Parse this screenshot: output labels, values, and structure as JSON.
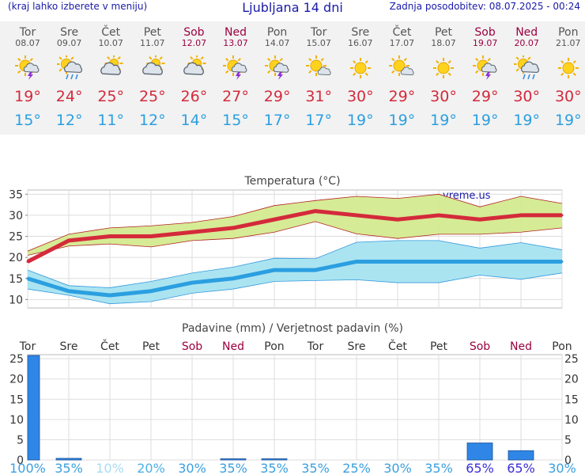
{
  "header": {
    "menu_hint": "(kraj lahko izberete v meniju)",
    "title": "Ljubljana 14 dni",
    "last_update": "Zadnja posodobitev: 08.07.2025 - 00:24"
  },
  "colors": {
    "header_text": "#1a1aa8",
    "weekday": "#555555",
    "weekend": "#9b0040",
    "max_temp": "#d42a3b",
    "min_temp": "#2b9fe0",
    "max_band": "#d4ea8f",
    "min_band": "#a6e3f0",
    "precip_bar": "#2f86e6"
  },
  "days": [
    {
      "name": "Tor",
      "date": "08.07",
      "weekend": false,
      "icon": "thunderstorm-sun-icon",
      "max": "19",
      "min": "15"
    },
    {
      "name": "Sre",
      "date": "09.07",
      "weekend": false,
      "icon": "rain-sun-cloud-icon",
      "max": "24",
      "min": "12"
    },
    {
      "name": "Čet",
      "date": "10.07",
      "weekend": false,
      "icon": "partly-cloudy-icon",
      "max": "25",
      "min": "11"
    },
    {
      "name": "Pet",
      "date": "11.07",
      "weekend": false,
      "icon": "partly-cloudy-icon",
      "max": "25",
      "min": "12"
    },
    {
      "name": "Sob",
      "date": "12.07",
      "weekend": true,
      "icon": "partly-cloudy-icon",
      "max": "26",
      "min": "14"
    },
    {
      "name": "Ned",
      "date": "13.07",
      "weekend": true,
      "icon": "thunderstorm-sun-icon",
      "max": "27",
      "min": "15"
    },
    {
      "name": "Pon",
      "date": "14.07",
      "weekend": false,
      "icon": "thunderstorm-sun-icon",
      "max": "29",
      "min": "17"
    },
    {
      "name": "Tor",
      "date": "15.07",
      "weekend": false,
      "icon": "sun-small-cloud-icon",
      "max": "31",
      "min": "17"
    },
    {
      "name": "Sre",
      "date": "16.07",
      "weekend": false,
      "icon": "sunny-icon",
      "max": "30",
      "min": "19"
    },
    {
      "name": "Čet",
      "date": "17.07",
      "weekend": false,
      "icon": "sun-small-cloud-icon",
      "max": "29",
      "min": "19"
    },
    {
      "name": "Pet",
      "date": "18.07",
      "weekend": false,
      "icon": "sunny-icon",
      "max": "30",
      "min": "19"
    },
    {
      "name": "Sob",
      "date": "19.07",
      "weekend": true,
      "icon": "thunderstorm-sun-icon",
      "max": "29",
      "min": "19"
    },
    {
      "name": "Ned",
      "date": "20.07",
      "weekend": true,
      "icon": "rain-sun-cloud-icon",
      "max": "30",
      "min": "19"
    },
    {
      "name": "Pon",
      "date": "21.07",
      "weekend": false,
      "icon": "sunny-icon",
      "max": "30",
      "min": "19"
    }
  ],
  "chart_data": [
    {
      "type": "line",
      "title": "Temperatura (°C)",
      "watermark": "vreme.us",
      "categories": [
        "Tor",
        "Sre",
        "Čet",
        "Pet",
        "Sob",
        "Ned",
        "Pon",
        "Tor",
        "Sre",
        "Čet",
        "Pet",
        "Sob",
        "Ned",
        "Pon"
      ],
      "ylim": [
        8,
        36
      ],
      "yticks": [
        10,
        15,
        20,
        25,
        30,
        35
      ],
      "grid": true,
      "series": [
        {
          "values": [
            19,
            24,
            25,
            25,
            26,
            27,
            29,
            31,
            30,
            29,
            30,
            29,
            30,
            30
          ],
          "band_low": [
            20.5,
            22.7,
            23.2,
            22.5,
            24,
            24.5,
            26,
            28.5,
            25.6,
            24.5,
            25.5,
            25.5,
            26,
            27
          ],
          "band_high": [
            21.5,
            25.5,
            27,
            27.5,
            28.3,
            29.7,
            32.3,
            33.5,
            34.5,
            34,
            35,
            32,
            34.5,
            32.8
          ]
        },
        {
          "values": [
            15,
            12,
            11,
            12,
            14,
            15,
            17,
            17,
            19,
            19,
            19,
            19,
            19,
            19
          ],
          "band_low": [
            12.5,
            11,
            9,
            9.5,
            11.5,
            12.5,
            14.3,
            14.5,
            14.7,
            14,
            14,
            15.8,
            14.8,
            16.3
          ],
          "band_high": [
            17,
            13.3,
            12.8,
            14.3,
            16.3,
            17.7,
            19.8,
            19.7,
            23.6,
            24,
            24,
            22.2,
            23.5,
            21.8
          ]
        }
      ]
    },
    {
      "type": "bar",
      "title": "Padavine (mm) / Verjetnost padavin (%)",
      "categories": [
        "Tor",
        "Sre",
        "Čet",
        "Pet",
        "Sob",
        "Ned",
        "Pon",
        "Tor",
        "Sre",
        "Čet",
        "Pet",
        "Sob",
        "Ned",
        "Pon"
      ],
      "ylim": [
        0,
        26
      ],
      "yticks": [
        0,
        5,
        10,
        15,
        20,
        25
      ],
      "grid": true,
      "values": [
        25.8,
        0.4,
        0,
        0,
        0,
        0.2,
        0.2,
        0,
        0,
        0,
        0,
        4.2,
        2.3,
        0
      ],
      "probabilities": [
        "100%",
        "35%",
        "10%",
        "20%",
        "30%",
        "35%",
        "35%",
        "35%",
        "25%",
        "30%",
        "35%",
        "65%",
        "65%",
        "30%"
      ]
    }
  ]
}
